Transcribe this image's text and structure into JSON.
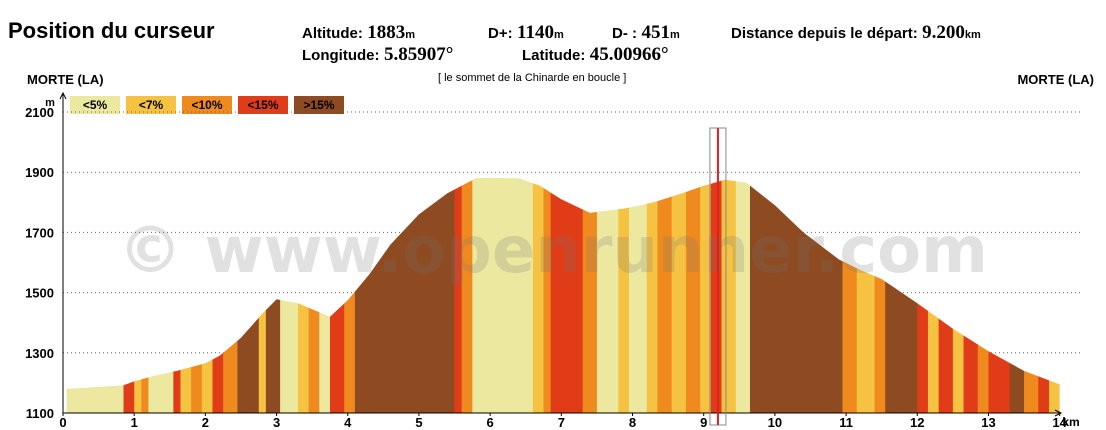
{
  "header": {
    "title": "Position du curseur",
    "altitude_label": "Altitude:",
    "altitude_value": "1883",
    "altitude_unit": "m",
    "dplus_label": "D+:",
    "dplus_value": "1140",
    "dplus_unit": "m",
    "dminus_label": "D- :",
    "dminus_value": "451",
    "dminus_unit": "m",
    "distance_label": "Distance depuis le départ:",
    "distance_value": "9.200",
    "distance_unit": "km",
    "longitude_label": "Longitude:",
    "longitude_value": "5.85907°",
    "latitude_label": "Latitude:",
    "latitude_value": "45.00966°"
  },
  "chart_data": {
    "type": "area",
    "title": "[ le sommet de la Chinarde en boucle ]",
    "start_label": "MORTE (LA)",
    "end_label": "MORTE (LA)",
    "xlabel": "km",
    "ylabel": "m",
    "xlim": [
      0,
      14.3
    ],
    "ylim": [
      1100,
      2150
    ],
    "x_ticks": [
      0,
      1,
      2,
      3,
      4,
      5,
      6,
      7,
      8,
      9,
      10,
      11,
      12,
      13,
      14
    ],
    "y_ticks": [
      1100,
      1300,
      1500,
      1700,
      1900,
      2100
    ],
    "legend": [
      {
        "label": "<5%",
        "color": "#ece8a0"
      },
      {
        "label": "<7%",
        "color": "#f5c242"
      },
      {
        "label": "<10%",
        "color": "#ef8a1e"
      },
      {
        "label": "<15%",
        "color": "#e03c18"
      },
      {
        "label": ">15%",
        "color": "#8e4a20"
      }
    ],
    "profile": {
      "x": [
        0.05,
        0.6,
        0.85,
        1.0,
        1.3,
        1.6,
        2.0,
        2.2,
        2.5,
        2.8,
        3.0,
        3.3,
        3.55,
        3.75,
        4.0,
        4.3,
        4.6,
        5.0,
        5.4,
        5.8,
        6.0,
        6.4,
        6.7,
        7.0,
        7.4,
        7.9,
        8.3,
        8.7,
        9.0,
        9.3,
        9.6,
        10.0,
        10.4,
        10.9,
        11.2,
        11.5,
        12.0,
        12.5,
        13.0,
        13.5,
        14.0
      ],
      "y": [
        1180,
        1188,
        1192,
        1205,
        1225,
        1240,
        1265,
        1290,
        1350,
        1430,
        1478,
        1465,
        1440,
        1420,
        1475,
        1560,
        1660,
        1760,
        1830,
        1880,
        1882,
        1880,
        1855,
        1810,
        1765,
        1780,
        1800,
        1830,
        1855,
        1875,
        1865,
        1790,
        1700,
        1610,
        1575,
        1545,
        1465,
        1380,
        1305,
        1240,
        1195
      ]
    },
    "segments": [
      {
        "x0": 0.05,
        "x1": 0.85,
        "grade": "<5%"
      },
      {
        "x0": 0.85,
        "x1": 1.0,
        "grade": "<15%"
      },
      {
        "x0": 1.0,
        "x1": 1.1,
        "grade": "<7%"
      },
      {
        "x0": 1.1,
        "x1": 1.2,
        "grade": "<10%"
      },
      {
        "x0": 1.2,
        "x1": 1.55,
        "grade": "<5%"
      },
      {
        "x0": 1.55,
        "x1": 1.65,
        "grade": "<15%"
      },
      {
        "x0": 1.65,
        "x1": 1.8,
        "grade": "<7%"
      },
      {
        "x0": 1.8,
        "x1": 1.95,
        "grade": "<10%"
      },
      {
        "x0": 1.95,
        "x1": 2.1,
        "grade": "<7%"
      },
      {
        "x0": 2.1,
        "x1": 2.25,
        "grade": "<15%"
      },
      {
        "x0": 2.25,
        "x1": 2.45,
        "grade": "<10%"
      },
      {
        "x0": 2.45,
        "x1": 2.75,
        "grade": ">15%"
      },
      {
        "x0": 2.75,
        "x1": 2.85,
        "grade": "<7%"
      },
      {
        "x0": 2.85,
        "x1": 3.05,
        "grade": ">15%"
      },
      {
        "x0": 3.05,
        "x1": 3.3,
        "grade": "<5%"
      },
      {
        "x0": 3.3,
        "x1": 3.45,
        "grade": "<7%"
      },
      {
        "x0": 3.45,
        "x1": 3.6,
        "grade": "<10%"
      },
      {
        "x0": 3.6,
        "x1": 3.75,
        "grade": "<5%"
      },
      {
        "x0": 3.75,
        "x1": 3.95,
        "grade": "<15%"
      },
      {
        "x0": 3.95,
        "x1": 4.1,
        "grade": "<10%"
      },
      {
        "x0": 4.1,
        "x1": 5.5,
        "grade": ">15%"
      },
      {
        "x0": 5.5,
        "x1": 5.6,
        "grade": "<15%"
      },
      {
        "x0": 5.6,
        "x1": 5.75,
        "grade": "<10%"
      },
      {
        "x0": 5.75,
        "x1": 6.6,
        "grade": "<5%"
      },
      {
        "x0": 6.6,
        "x1": 6.75,
        "grade": "<7%"
      },
      {
        "x0": 6.75,
        "x1": 6.85,
        "grade": "<10%"
      },
      {
        "x0": 6.85,
        "x1": 7.3,
        "grade": "<15%"
      },
      {
        "x0": 7.3,
        "x1": 7.5,
        "grade": "<10%"
      },
      {
        "x0": 7.5,
        "x1": 7.8,
        "grade": "<5%"
      },
      {
        "x0": 7.8,
        "x1": 7.95,
        "grade": "<7%"
      },
      {
        "x0": 7.95,
        "x1": 8.2,
        "grade": "<5%"
      },
      {
        "x0": 8.2,
        "x1": 8.35,
        "grade": "<7%"
      },
      {
        "x0": 8.35,
        "x1": 8.55,
        "grade": "<10%"
      },
      {
        "x0": 8.55,
        "x1": 8.75,
        "grade": "<7%"
      },
      {
        "x0": 8.75,
        "x1": 8.95,
        "grade": "<10%"
      },
      {
        "x0": 8.95,
        "x1": 9.1,
        "grade": "<7%"
      },
      {
        "x0": 9.1,
        "x1": 9.25,
        "grade": "<15%"
      },
      {
        "x0": 9.25,
        "x1": 9.45,
        "grade": "<7%"
      },
      {
        "x0": 9.45,
        "x1": 9.65,
        "grade": "<5%"
      },
      {
        "x0": 9.65,
        "x1": 10.95,
        "grade": ">15%"
      },
      {
        "x0": 10.95,
        "x1": 11.15,
        "grade": "<10%"
      },
      {
        "x0": 11.15,
        "x1": 11.4,
        "grade": "<7%"
      },
      {
        "x0": 11.4,
        "x1": 11.55,
        "grade": "<10%"
      },
      {
        "x0": 11.55,
        "x1": 12.0,
        "grade": ">15%"
      },
      {
        "x0": 12.0,
        "x1": 12.15,
        "grade": "<15%"
      },
      {
        "x0": 12.15,
        "x1": 12.3,
        "grade": "<7%"
      },
      {
        "x0": 12.3,
        "x1": 12.5,
        "grade": "<15%"
      },
      {
        "x0": 12.5,
        "x1": 12.65,
        "grade": "<7%"
      },
      {
        "x0": 12.65,
        "x1": 12.85,
        "grade": "<15%"
      },
      {
        "x0": 12.85,
        "x1": 13.0,
        "grade": "<10%"
      },
      {
        "x0": 13.0,
        "x1": 13.3,
        "grade": "<15%"
      },
      {
        "x0": 13.3,
        "x1": 13.5,
        "grade": ">15%"
      },
      {
        "x0": 13.5,
        "x1": 13.7,
        "grade": "<10%"
      },
      {
        "x0": 13.7,
        "x1": 13.85,
        "grade": "<15%"
      },
      {
        "x0": 13.85,
        "x1": 14.0,
        "grade": "<7%"
      }
    ],
    "cursor": {
      "x": 9.2,
      "y": 1883
    },
    "grid": true,
    "watermark": "© www.openrunner.com"
  }
}
